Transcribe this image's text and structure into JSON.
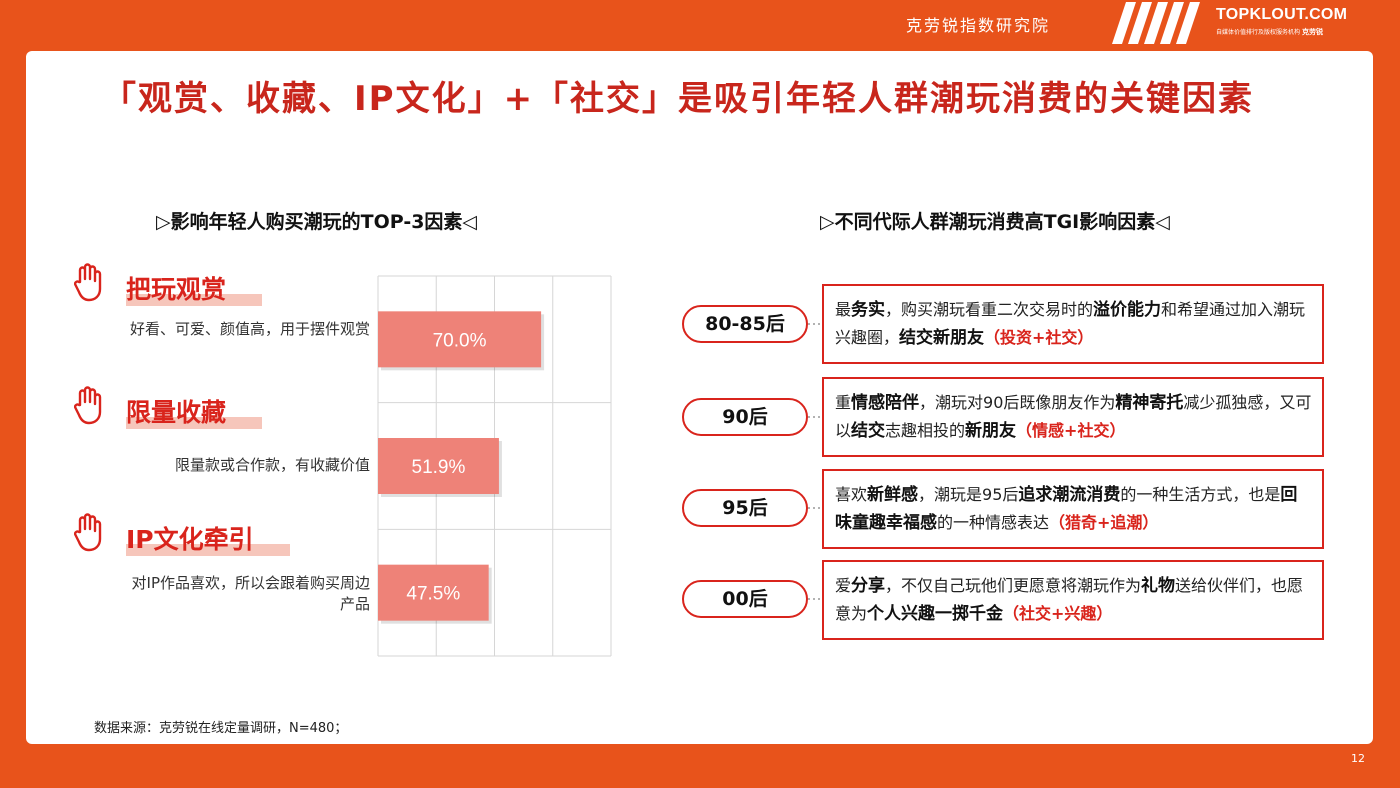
{
  "header": {
    "org_name": "克劳锐指数研究院",
    "brand": "TOPKLOUT.COM",
    "brand_sub": "自媒体价值排行及版权服务机构",
    "brand_sub_name": "克劳锐"
  },
  "slide": {
    "title": "「观赏、收藏、IP文化」+「社交」是吸引年轻人群潮玩消费的关键因素",
    "left_section_title": "▷影响年轻人购买潮玩的TOP-3因素◁",
    "right_section_title": "▷不同代际人群潮玩消费高TGI影响因素◁",
    "source": "数据来源：克劳锐在线定量调研，N=480；",
    "page_number": "12"
  },
  "colors": {
    "accent": "#e8531b",
    "title_red": "#c8261c",
    "bar": "#ee8278",
    "highlight": "#f6c6bb"
  },
  "factors": [
    {
      "title": "把玩观赏",
      "desc": "好看、可爱、颜值高，用于摆件观赏",
      "value_label": "70.0%",
      "icon": "hand-icon"
    },
    {
      "title": "限量收藏",
      "desc": "限量款或合作款，有收藏价值",
      "value_label": "51.9%",
      "icon": "hand-icon"
    },
    {
      "title": "IP文化牵引",
      "desc": "对IP作品喜欢，所以会跟着购买周边产品",
      "value_label": "47.5%",
      "icon": "hand-icon"
    }
  ],
  "chart_data": {
    "type": "bar",
    "orientation": "horizontal",
    "categories": [
      "把玩观赏",
      "限量收藏",
      "IP文化牵引"
    ],
    "values": [
      70.0,
      51.9,
      47.5
    ],
    "value_labels": [
      "70.0%",
      "51.9%",
      "47.5%"
    ],
    "xlim": [
      0,
      100
    ],
    "grid": true
  },
  "generations": [
    {
      "label": "80-85后",
      "parts": [
        {
          "t": "最",
          "s": "n"
        },
        {
          "t": "务实",
          "s": "b"
        },
        {
          "t": "，购买潮玩看重二次交易时的",
          "s": "n"
        },
        {
          "t": "溢价能力",
          "s": "b"
        },
        {
          "t": "和希望通过加入潮玩兴趣圈，",
          "s": "n"
        },
        {
          "t": "结交新朋友",
          "s": "b"
        },
        {
          "t": "（投资+社交）",
          "s": "r"
        }
      ]
    },
    {
      "label": "90后",
      "parts": [
        {
          "t": "重",
          "s": "n"
        },
        {
          "t": "情感陪伴",
          "s": "b"
        },
        {
          "t": "，潮玩对90后既像朋友作为",
          "s": "n"
        },
        {
          "t": "精神寄托",
          "s": "b"
        },
        {
          "t": "减少孤独感，又可以",
          "s": "n"
        },
        {
          "t": "结交",
          "s": "b"
        },
        {
          "t": "志趣相投的",
          "s": "n"
        },
        {
          "t": "新朋友",
          "s": "b"
        },
        {
          "t": "（情感+社交）",
          "s": "r"
        }
      ]
    },
    {
      "label": "95后",
      "parts": [
        {
          "t": "喜欢",
          "s": "n"
        },
        {
          "t": "新鲜感",
          "s": "b"
        },
        {
          "t": "，潮玩是95后",
          "s": "n"
        },
        {
          "t": "追求潮流消费",
          "s": "b"
        },
        {
          "t": "的一种生活方式，也是",
          "s": "n"
        },
        {
          "t": "回味童趣幸福感",
          "s": "b"
        },
        {
          "t": "的一种情感表达",
          "s": "n"
        },
        {
          "t": "（猎奇+追潮）",
          "s": "r"
        }
      ]
    },
    {
      "label": "00后",
      "parts": [
        {
          "t": "爱",
          "s": "n"
        },
        {
          "t": "分享",
          "s": "b"
        },
        {
          "t": "，不仅自己玩他们更愿意将潮玩作为",
          "s": "n"
        },
        {
          "t": "礼物",
          "s": "b"
        },
        {
          "t": "送给伙伴们，也愿意为",
          "s": "n"
        },
        {
          "t": "个人兴趣一掷千金",
          "s": "b"
        },
        {
          "t": "（社交+兴趣）",
          "s": "r"
        }
      ]
    }
  ]
}
